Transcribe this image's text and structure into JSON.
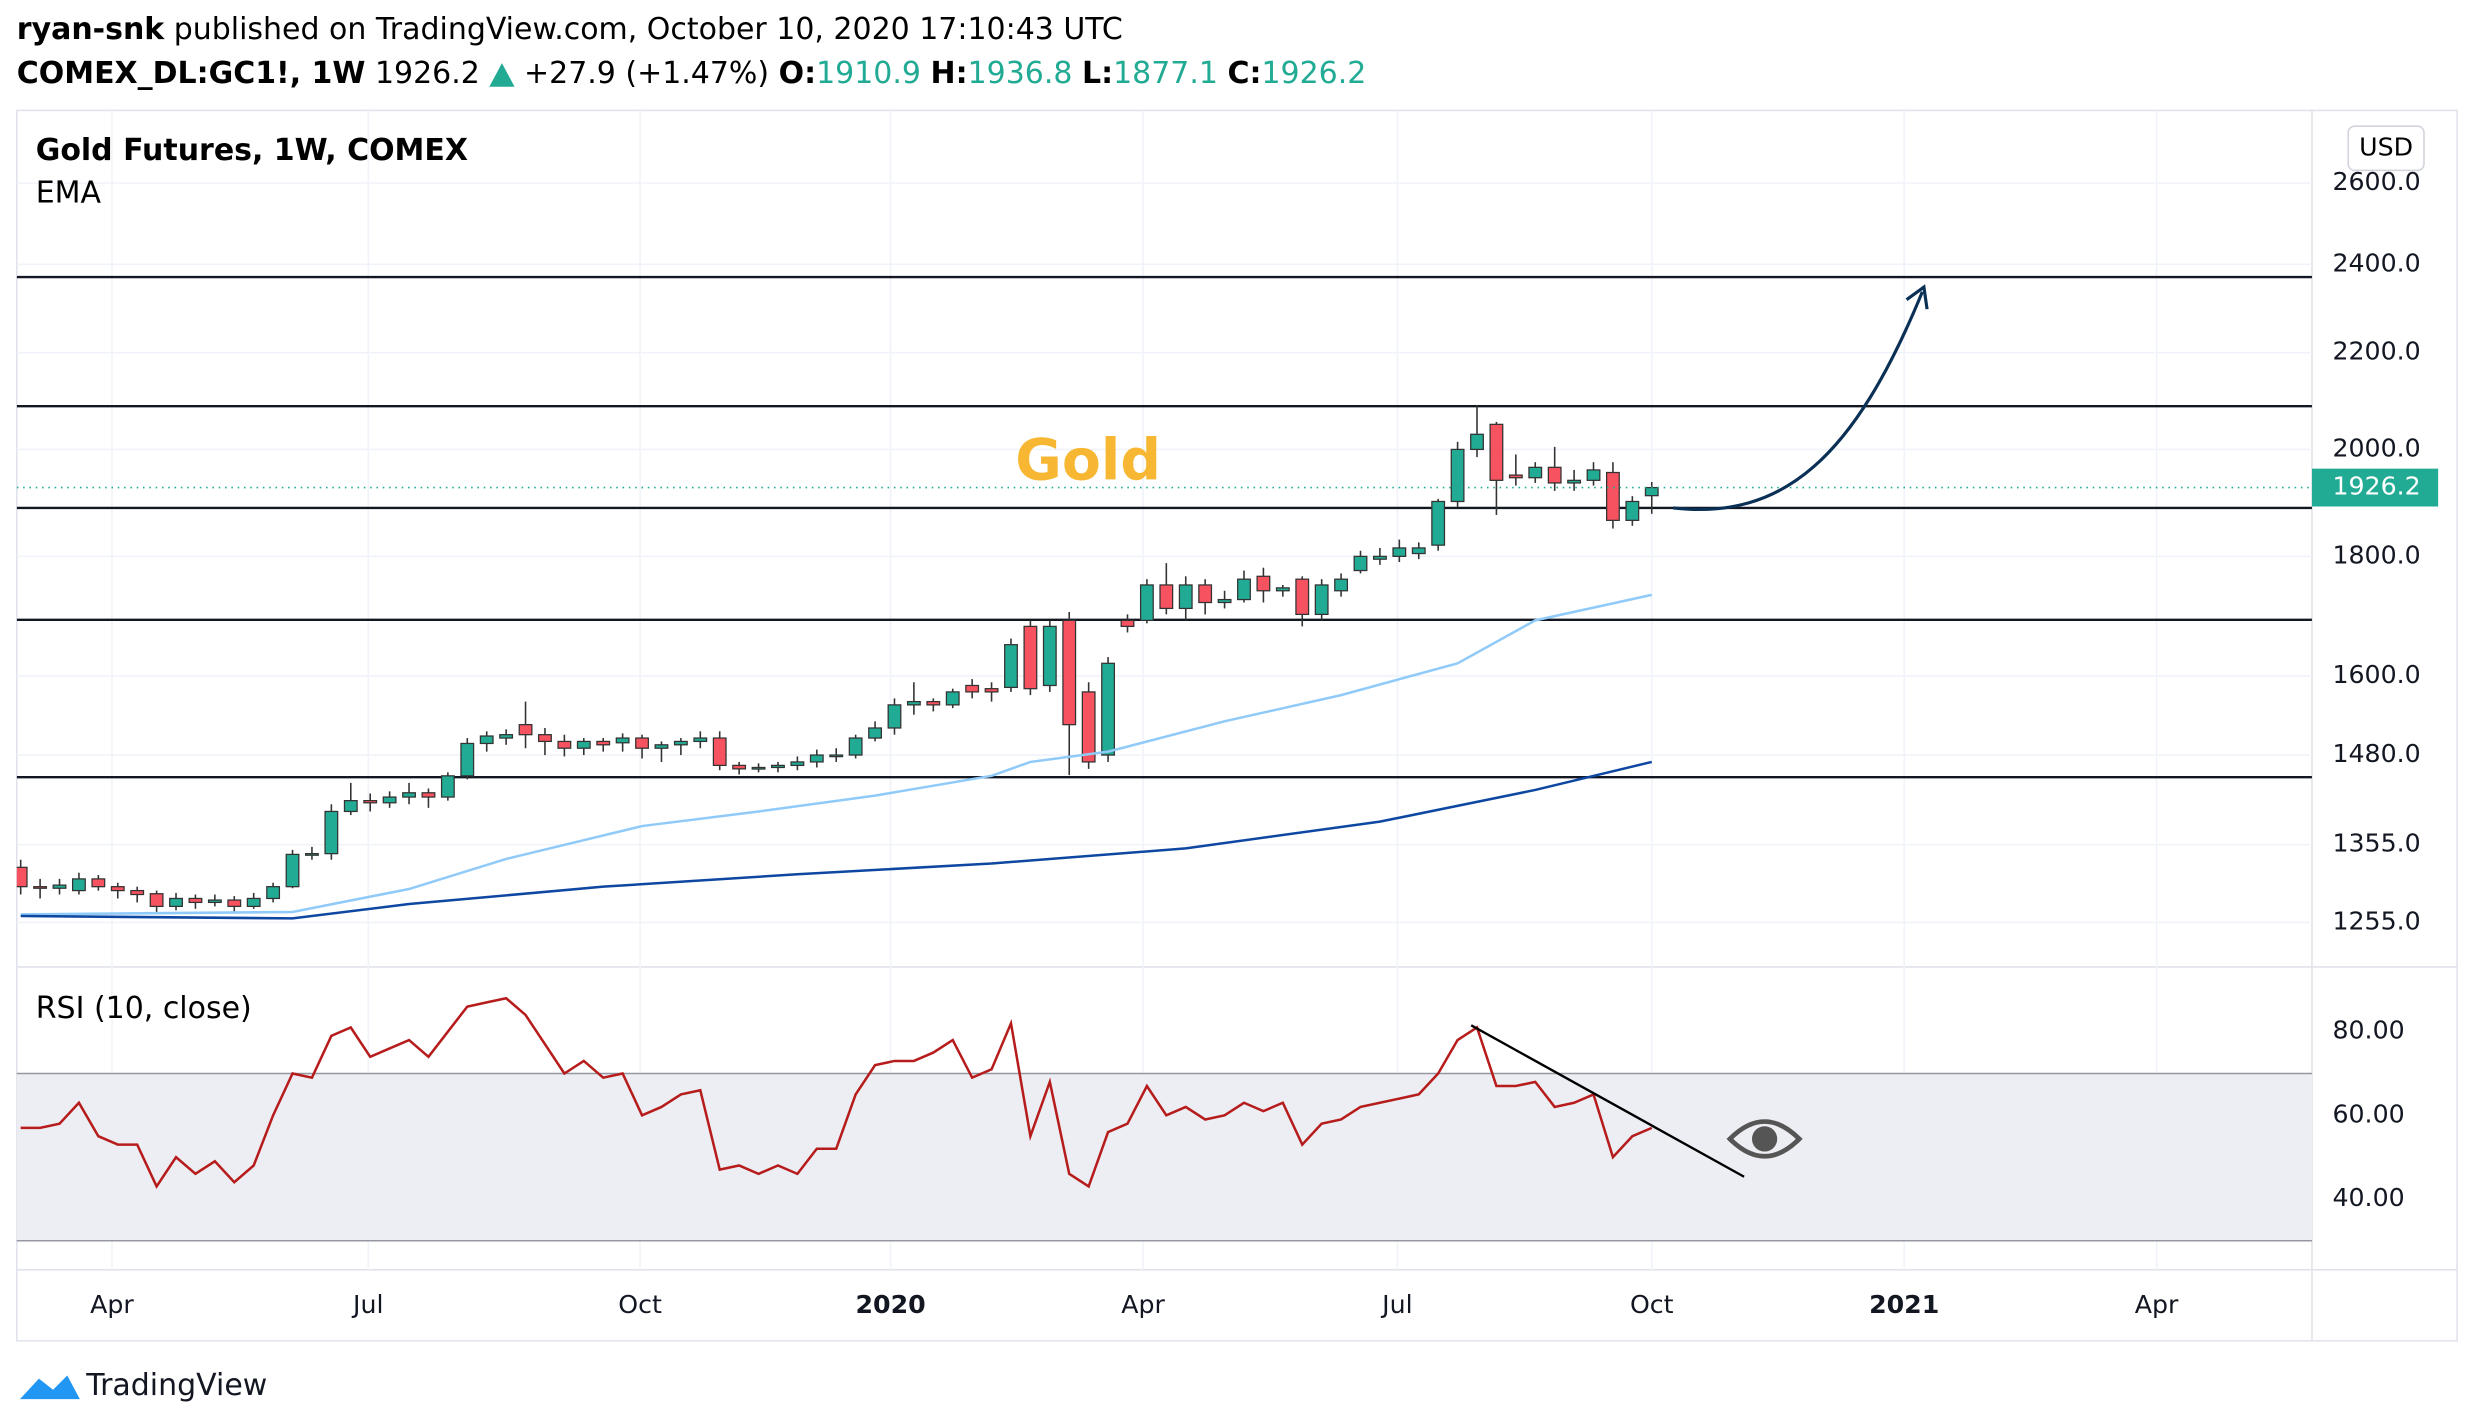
{
  "header": {
    "author": "ryan-snk",
    "published": "published on TradingView.com, October 10, 2020 17:10:43 UTC",
    "symbol": "COMEX_DL:GC1!, 1W",
    "change": "+27.9 (+1.47%)",
    "o": "O:",
    "h": "H:",
    "l": "L:",
    "c": "C:"
  },
  "footer": {
    "brand": "TradingView"
  },
  "chart_data": [
    {
      "type": "candlestick",
      "title": "Gold Futures, 1W, COMEX",
      "indicator_label": "EMA",
      "currency": "USD",
      "annotation": "Gold",
      "scale": "log",
      "grid": true,
      "up_color": "#22ab94",
      "down_color": "#f7525f",
      "xlim": [
        -0.2,
        118
      ],
      "xticks": [
        {
          "value": 4.7,
          "label": "Apr"
        },
        {
          "value": 17.9,
          "label": "Jul"
        },
        {
          "value": 31.9,
          "label": "Oct"
        },
        {
          "value": 44.8,
          "label": "2020"
        },
        {
          "value": 57.8,
          "label": "Apr"
        },
        {
          "value": 70.9,
          "label": "Jul"
        },
        {
          "value": 84,
          "label": "Oct"
        },
        {
          "value": 97,
          "label": "2021"
        },
        {
          "value": 110,
          "label": "Apr"
        }
      ],
      "ylim": [
        1203,
        2793
      ],
      "yticks": [
        {
          "value": 1255,
          "label": "1255.0"
        },
        {
          "value": 1355,
          "label": "1355.0"
        },
        {
          "value": 1480,
          "label": "1480.0"
        },
        {
          "value": 1600,
          "label": "1600.0"
        },
        {
          "value": 1800,
          "label": "1800.0"
        },
        {
          "value": 2000,
          "label": "2000.0"
        },
        {
          "value": 2200,
          "label": "2200.0"
        },
        {
          "value": 2400,
          "label": "2400.0"
        },
        {
          "value": 2600,
          "label": "2600.0"
        }
      ],
      "levels": [
        2370,
        2087,
        1888,
        1691,
        1448
      ],
      "series": [
        {
          "open": [
            1325,
            1300,
            1298,
            1295,
            1310,
            1300,
            1295,
            1291,
            1275,
            1285,
            1280,
            1283,
            1275,
            1285,
            1300,
            1342,
            1343,
            1400,
            1415,
            1412,
            1420,
            1426,
            1420,
            1450,
            1497,
            1505,
            1525,
            1510,
            1500,
            1490,
            1500,
            1498,
            1505,
            1490,
            1495,
            1500,
            1505,
            1465,
            1460,
            1462,
            1465,
            1470,
            1480,
            1480,
            1505,
            1520,
            1555,
            1560,
            1555,
            1585,
            1580,
            1582,
            1680,
            1585,
            1690,
            1575,
            1480,
            1690,
            1690,
            1750,
            1710,
            1750,
            1720,
            1725,
            1765,
            1740,
            1760,
            1700,
            1740,
            1775,
            1795,
            1800,
            1805,
            1820,
            1900,
            2000,
            2050,
            1950,
            1945,
            1965,
            1935,
            1940,
            1955,
            1865,
            1910.9
          ],
          "high": [
            1335,
            1310,
            1310,
            1318,
            1315,
            1305,
            1300,
            1295,
            1292,
            1290,
            1290,
            1288,
            1292,
            1305,
            1348,
            1352,
            1410,
            1440,
            1425,
            1428,
            1440,
            1432,
            1455,
            1505,
            1515,
            1518,
            1560,
            1520,
            1510,
            1505,
            1505,
            1512,
            1510,
            1500,
            1505,
            1515,
            1515,
            1470,
            1468,
            1470,
            1478,
            1488,
            1490,
            1510,
            1530,
            1565,
            1590,
            1565,
            1580,
            1595,
            1590,
            1660,
            1690,
            1690,
            1704,
            1590,
            1630,
            1700,
            1760,
            1788,
            1765,
            1760,
            1740,
            1775,
            1780,
            1750,
            1765,
            1760,
            1770,
            1810,
            1815,
            1830,
            1825,
            1905,
            2015,
            2089,
            2055,
            1990,
            1975,
            2005,
            1960,
            1975,
            1975,
            1910,
            1936.8
          ],
          "low": [
            1290,
            1285,
            1290,
            1290,
            1295,
            1285,
            1280,
            1268,
            1270,
            1272,
            1275,
            1266,
            1272,
            1280,
            1298,
            1335,
            1335,
            1395,
            1400,
            1405,
            1410,
            1405,
            1415,
            1445,
            1485,
            1495,
            1490,
            1480,
            1478,
            1480,
            1485,
            1485,
            1475,
            1470,
            1480,
            1490,
            1458,
            1452,
            1455,
            1455,
            1458,
            1462,
            1470,
            1475,
            1500,
            1510,
            1540,
            1545,
            1550,
            1565,
            1560,
            1575,
            1570,
            1575,
            1451,
            1460,
            1470,
            1670,
            1685,
            1700,
            1690,
            1700,
            1710,
            1720,
            1720,
            1730,
            1680,
            1690,
            1730,
            1770,
            1785,
            1790,
            1795,
            1810,
            1890,
            1985,
            1875,
            1930,
            1935,
            1920,
            1920,
            1930,
            1850,
            1855,
            1877.1
          ],
          "close": [
            1300,
            1298,
            1302,
            1310,
            1300,
            1295,
            1290,
            1275,
            1285,
            1280,
            1283,
            1275,
            1285,
            1300,
            1342,
            1343,
            1400,
            1415,
            1412,
            1420,
            1426,
            1420,
            1450,
            1497,
            1508,
            1510,
            1510,
            1500,
            1490,
            1500,
            1495,
            1505,
            1490,
            1495,
            1500,
            1505,
            1465,
            1460,
            1462,
            1465,
            1470,
            1480,
            1480,
            1505,
            1520,
            1555,
            1560,
            1555,
            1575,
            1575,
            1575,
            1650,
            1580,
            1680,
            1525,
            1470,
            1620,
            1680,
            1750,
            1710,
            1750,
            1720,
            1725,
            1760,
            1740,
            1745,
            1700,
            1750,
            1760,
            1800,
            1800,
            1815,
            1815,
            1900,
            2000,
            2030,
            1940,
            1945,
            1965,
            1935,
            1940,
            1960,
            1865,
            1900,
            1926.2
          ]
        },
        {
          "type": "line",
          "color": "#90caf9",
          "x": [
            0,
            14,
            20,
            25,
            32,
            38,
            44,
            50,
            52,
            56,
            62,
            68,
            74,
            78,
            84
          ],
          "values": [
            1265,
            1268,
            1297,
            1336,
            1380,
            1400,
            1422,
            1450,
            1470,
            1485,
            1530,
            1570,
            1620,
            1690,
            1733
          ]
        },
        {
          "type": "line",
          "color": "#0d47a1",
          "x": [
            0,
            14,
            20,
            30,
            40,
            50,
            60,
            70,
            78,
            84
          ],
          "values": [
            1263,
            1260,
            1278,
            1300,
            1316,
            1330,
            1350,
            1386,
            1430,
            1470
          ]
        }
      ]
    },
    {
      "type": "line",
      "title": "RSI (10, close)",
      "band": [
        30,
        70
      ],
      "grid": true,
      "ylim": [
        23.8,
        95.1
      ],
      "yticks": [
        {
          "value": 40,
          "label": "40.00"
        },
        {
          "value": 60,
          "label": "60.00"
        },
        {
          "value": 80,
          "label": "80.00"
        }
      ],
      "series": [
        {
          "color": "#b71c1c",
          "values": [
            57,
            57,
            58,
            63,
            55,
            53,
            53,
            43,
            50,
            46,
            49,
            44,
            48,
            60,
            70,
            69,
            79,
            81,
            74,
            76,
            78,
            74,
            80,
            86,
            87,
            88,
            84,
            77,
            70,
            73,
            69,
            70,
            60,
            62,
            65,
            66,
            47,
            48,
            46,
            48,
            46,
            52,
            52,
            65,
            72,
            73,
            73,
            75,
            78,
            69,
            71,
            82,
            55,
            68,
            46,
            43,
            56,
            58,
            67,
            60,
            62,
            59,
            60,
            63,
            61,
            63,
            53,
            58,
            59,
            62,
            63,
            64,
            65,
            70,
            78,
            81,
            67,
            67,
            68,
            62,
            63,
            65,
            50,
            55,
            57
          ]
        }
      ]
    }
  ]
}
